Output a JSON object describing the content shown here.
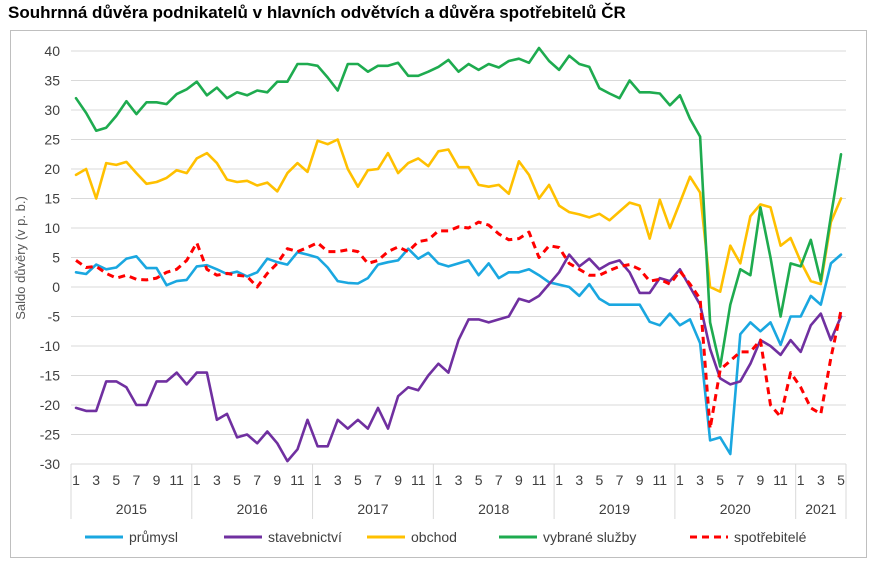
{
  "chart_data": {
    "type": "line",
    "title": "Souhrnná důvěra podnikatelů v hlavních odvětvích a důvěra spotřebitelů ČR",
    "xlabel": "",
    "ylabel": "Saldo důvěry (v p. b.)",
    "ylim": [
      -30,
      40
    ],
    "yticks": [
      40,
      35,
      30,
      25,
      20,
      15,
      10,
      5,
      0,
      -5,
      -10,
      -15,
      -20,
      -25,
      -30
    ],
    "grid": true,
    "legend": "bottom",
    "year_groups": [
      {
        "label": "2015",
        "months": [
          1,
          2,
          3,
          4,
          5,
          6,
          7,
          8,
          9,
          10,
          11,
          12
        ]
      },
      {
        "label": "2016",
        "months": [
          1,
          2,
          3,
          4,
          5,
          6,
          7,
          8,
          9,
          10,
          11,
          12
        ]
      },
      {
        "label": "2017",
        "months": [
          1,
          2,
          3,
          4,
          5,
          6,
          7,
          8,
          9,
          10,
          11,
          12
        ]
      },
      {
        "label": "2018",
        "months": [
          1,
          2,
          3,
          4,
          5,
          6,
          7,
          8,
          9,
          10,
          11,
          12
        ]
      },
      {
        "label": "2019",
        "months": [
          1,
          2,
          3,
          4,
          5,
          6,
          7,
          8,
          9,
          10,
          11,
          12
        ]
      },
      {
        "label": "2020",
        "months": [
          1,
          2,
          3,
          4,
          5,
          6,
          7,
          8,
          9,
          10,
          11,
          12
        ]
      },
      {
        "label": "2021",
        "months": [
          1,
          2,
          3,
          4,
          5
        ]
      }
    ],
    "x_tick_labels": [
      "1",
      "3",
      "5",
      "7",
      "9",
      "11",
      "1",
      "3",
      "5",
      "7",
      "9",
      "11",
      "1",
      "3",
      "5",
      "7",
      "9",
      "11",
      "1",
      "3",
      "5",
      "7",
      "9",
      "11",
      "1",
      "3",
      "5",
      "7",
      "9",
      "11",
      "1",
      "3",
      "5",
      "7",
      "9",
      "11",
      "1",
      "3",
      "5"
    ],
    "series": [
      {
        "name": "průmysl",
        "color": "#1aa7e0",
        "dash": false,
        "values": [
          2.5,
          2.2,
          3.8,
          3.0,
          3.3,
          4.8,
          5.2,
          3.2,
          3.2,
          0.3,
          1.0,
          1.2,
          3.5,
          3.7,
          3.0,
          2.2,
          2.6,
          1.8,
          2.5,
          4.8,
          4.2,
          3.8,
          5.9,
          5.5,
          5.0,
          3.3,
          1.0,
          0.7,
          0.6,
          1.5,
          3.8,
          4.2,
          4.5,
          6.5,
          4.8,
          5.8,
          4.0,
          3.5,
          4.0,
          4.5,
          2.0,
          4.0,
          1.5,
          2.5,
          2.5,
          3.0,
          2.0,
          0.8,
          0.4,
          0.0,
          -1.5,
          0.5,
          -2.0,
          -3.0,
          -3.0,
          -3.0,
          -3.0,
          -5.9,
          -6.5,
          -4.5,
          -6.5,
          -5.5,
          -9.5,
          -26.0,
          -25.5,
          -28.3,
          -8.0,
          -6.0,
          -7.5,
          -6.0,
          -9.8,
          -5.0,
          -5.0,
          -1.5,
          -3.0,
          4.0,
          5.5
        ]
      },
      {
        "name": "stavebnictví",
        "color": "#7030a0",
        "dash": false,
        "values": [
          -20.5,
          -21.0,
          -21.0,
          -16.0,
          -16.0,
          -17.0,
          -20.0,
          -20.0,
          -16.0,
          -16.0,
          -14.5,
          -16.5,
          -14.5,
          -14.5,
          -22.5,
          -21.5,
          -25.5,
          -25.0,
          -26.5,
          -24.5,
          -26.5,
          -29.5,
          -27.5,
          -22.5,
          -27.0,
          -27.0,
          -22.5,
          -24.0,
          -22.5,
          -24.0,
          -20.5,
          -24.0,
          -18.5,
          -17.0,
          -17.5,
          -15.0,
          -13.0,
          -14.5,
          -9.0,
          -5.5,
          -5.5,
          -6.0,
          -5.5,
          -5.0,
          -2.0,
          -2.5,
          -1.5,
          0.5,
          2.5,
          5.5,
          3.5,
          4.8,
          3.0,
          4.0,
          4.5,
          2.5,
          -1.0,
          -1.0,
          1.5,
          1.0,
          3.0,
          0.0,
          -3.0,
          -10.5,
          -15.5,
          -16.5,
          -16.0,
          -13.0,
          -9.0,
          -10.0,
          -11.5,
          -9.0,
          -11.0,
          -6.5,
          -4.5,
          -9.0,
          -5.0
        ]
      },
      {
        "name": "obchod",
        "color": "#ffc000",
        "dash": false,
        "values": [
          19.0,
          20.0,
          15.0,
          21.0,
          20.7,
          21.2,
          19.3,
          17.5,
          17.8,
          18.5,
          19.8,
          19.3,
          21.8,
          22.7,
          21.0,
          18.2,
          17.8,
          18.0,
          17.2,
          17.7,
          16.2,
          19.3,
          21.0,
          19.5,
          24.8,
          24.2,
          25.0,
          20.0,
          17.0,
          19.8,
          20.0,
          22.7,
          19.3,
          21.0,
          21.8,
          20.5,
          23.0,
          23.3,
          20.3,
          20.3,
          17.3,
          17.0,
          17.3,
          15.8,
          21.3,
          19.0,
          15.0,
          17.3,
          13.8,
          12.7,
          12.3,
          11.8,
          12.4,
          11.3,
          12.8,
          14.3,
          13.8,
          8.2,
          14.8,
          10.0,
          14.3,
          18.7,
          16.0,
          0.0,
          -0.8,
          7.0,
          4.0,
          12.0,
          14.0,
          13.5,
          7.0,
          8.3,
          4.3,
          1.0,
          0.5,
          11.0,
          15.0
        ]
      },
      {
        "name": "vybrané služby",
        "color": "#1eab4f",
        "dash": false,
        "values": [
          32.0,
          29.5,
          26.5,
          27.0,
          29.0,
          31.5,
          29.3,
          31.3,
          31.3,
          31.0,
          32.7,
          33.5,
          34.8,
          32.5,
          33.8,
          32.0,
          33.0,
          32.5,
          33.3,
          33.0,
          34.8,
          34.8,
          37.8,
          37.8,
          37.5,
          35.5,
          33.3,
          37.8,
          37.8,
          36.5,
          37.5,
          37.5,
          38.0,
          35.8,
          35.8,
          36.5,
          37.3,
          38.5,
          36.5,
          37.8,
          36.8,
          37.8,
          37.2,
          38.3,
          38.7,
          38.0,
          40.5,
          38.3,
          36.8,
          39.2,
          37.8,
          37.3,
          33.7,
          32.8,
          32.0,
          35.0,
          33.0,
          33.0,
          32.8,
          30.8,
          32.5,
          28.5,
          25.5,
          -6.0,
          -13.5,
          -3.0,
          3.0,
          2.0,
          13.5,
          5.0,
          -5.0,
          4.0,
          3.5,
          8.0,
          1.0,
          12.0,
          22.5
        ]
      },
      {
        "name": "spotřebitelé",
        "color": "#ff0000",
        "dash": true,
        "values": [
          4.5,
          3.3,
          3.5,
          2.3,
          1.5,
          2.0,
          1.3,
          1.2,
          1.5,
          2.5,
          3.0,
          4.5,
          7.5,
          3.0,
          2.0,
          2.3,
          2.0,
          1.8,
          0.0,
          2.3,
          4.0,
          6.5,
          6.0,
          6.7,
          7.5,
          6.0,
          6.0,
          6.3,
          6.0,
          4.0,
          4.5,
          6.0,
          6.8,
          6.0,
          7.7,
          8.0,
          9.5,
          9.5,
          10.2,
          10.0,
          11.0,
          10.5,
          9.0,
          8.0,
          8.2,
          9.3,
          5.0,
          7.0,
          6.7,
          4.0,
          3.0,
          2.0,
          2.0,
          2.8,
          3.5,
          3.8,
          3.0,
          1.0,
          1.3,
          0.5,
          2.7,
          0.5,
          -2.0,
          -24.0,
          -14.0,
          -12.5,
          -11.0,
          -11.0,
          -9.0,
          -20.0,
          -22.0,
          -14.5,
          -17.0,
          -20.5,
          -21.5,
          -12.0,
          -4.0
        ]
      }
    ]
  }
}
